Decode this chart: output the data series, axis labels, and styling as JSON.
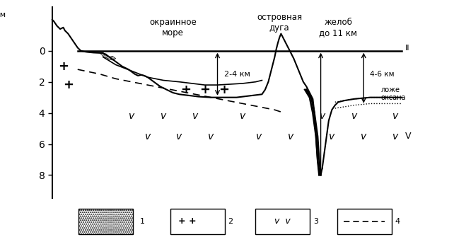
{
  "bg_color": "#ffffff",
  "yticks": [
    0,
    -2,
    -4,
    -6,
    -8
  ],
  "ylim": [
    -9.5,
    2.8
  ],
  "xlim": [
    -0.5,
    11.5
  ],
  "km_label": "км",
  "labels": {
    "okrainoe_more": "окраинное\nморе",
    "ostrovnaya_duga": "островная\nдуга",
    "zhelob": "желоб\nдо 11 км",
    "glubin_24": "2-4 км",
    "glubin_46": "4-6 км",
    "lozhe1": "ложе",
    "lozhe2": "оксана",
    "ii": "II",
    "v_label": "V"
  }
}
